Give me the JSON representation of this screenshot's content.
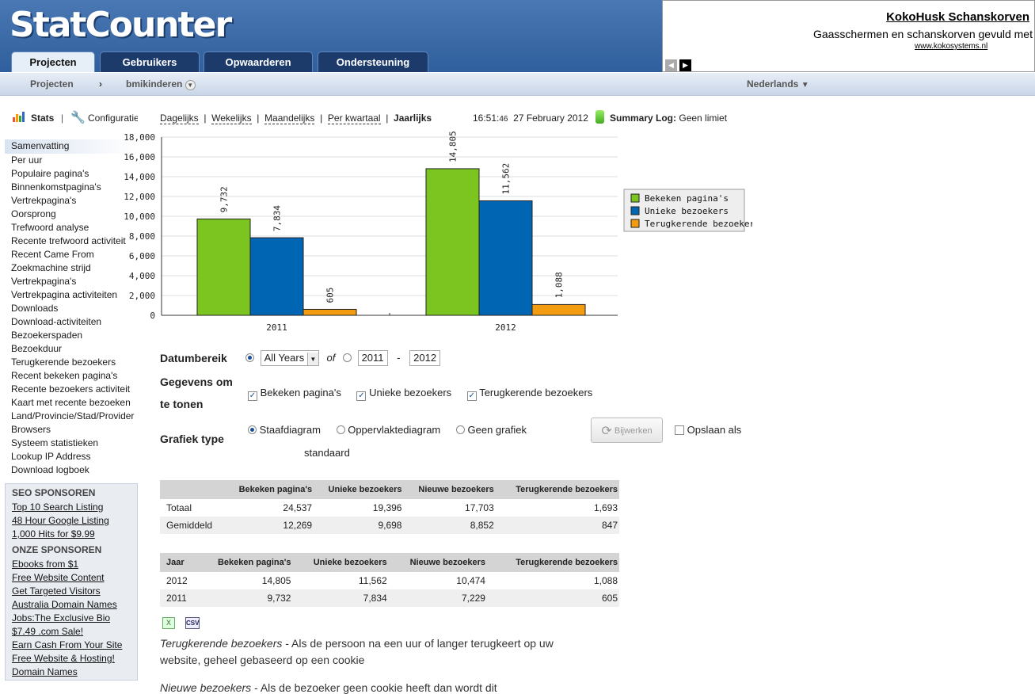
{
  "header": {
    "logo": "StatCounter",
    "tabs": [
      "Projecten",
      "Gebruikers",
      "Opwaarderen",
      "Ondersteuning"
    ]
  },
  "ad": {
    "title": "KokoHusk Schanskorven",
    "text": "Gaasschermen en schanskorven gevuld met",
    "url": "www.kokosystems.nl"
  },
  "subbar": {
    "projects": "Projecten",
    "sep": "›",
    "project": "bmikinderen",
    "language": "Nederlands"
  },
  "toolbar": {
    "stats": "Stats",
    "config": "Configuratie",
    "periods": [
      "Dagelijks",
      "Wekelijks",
      "Maandelijks",
      "Per kwartaal",
      "Jaarlijks"
    ],
    "time": "16:51:",
    "seconds": "46",
    "date": "27 February 2012",
    "summary_label": "Summary Log:",
    "summary_value": "Geen limiet"
  },
  "sidebar": {
    "items": [
      "Samenvatting",
      "Per uur",
      "Populaire pagina's",
      "Binnenkomstpagina's",
      "Vertrekpagina's",
      "Oorsprong",
      "Trefwoord analyse",
      "Recente trefwoord activiteit",
      "Recent Came From",
      "Zoekmachine strijd",
      "Vertrekpagina's",
      "Vertrekpagina activiteiten",
      "Downloads",
      "Download-activiteiten",
      "Bezoekerspaden",
      "Bezoekduur",
      "Terugkerende bezoekers",
      "Recent bekeken pagina's",
      "Recente bezoekers activiteit",
      "Kaart met recente bezoeken",
      "Land/Provincie/Stad/Provider",
      "Browsers",
      "Systeem statistieken",
      "Lookup IP Address",
      "Download logboek"
    ]
  },
  "sponsors": {
    "seo_title": "SEO SPONSOREN",
    "seo": [
      "Top 10 Search Listing",
      "48 Hour Google Listing",
      "1,000 Hits for $9.99"
    ],
    "our_title": "ONZE SPONSOREN",
    "our": [
      "Ebooks from $1",
      "Free Website Content",
      "Get Targeted Visitors",
      "Australia Domain Names",
      "Jobs:The Exclusive Bio",
      "$7.49 .com Sale!",
      "Earn Cash From Your Site",
      "Free Website & Hosting!",
      "Domain Names"
    ]
  },
  "chart_data": {
    "type": "bar",
    "categories": [
      "2011",
      "2012"
    ],
    "series": [
      {
        "name": "Bekeken pagina's",
        "values": [
          9732,
          14805
        ],
        "color": "#7cc520"
      },
      {
        "name": "Unieke bezoekers",
        "values": [
          7834,
          11562
        ],
        "color": "#0066b3"
      },
      {
        "name": "Terugkerende bezoekers",
        "values": [
          605,
          1088
        ],
        "color": "#f39c12"
      }
    ],
    "ylim": [
      0,
      18000
    ],
    "yticks": [
      "0",
      "2,000",
      "4,000",
      "6,000",
      "8,000",
      "10,000",
      "12,000",
      "14,000",
      "16,000",
      "18,000"
    ],
    "labels": [
      [
        "9,732",
        "7,834",
        "605"
      ],
      [
        "14,805",
        "11,562",
        "1,088"
      ]
    ],
    "legend": "right"
  },
  "form": {
    "date_label": "Datumbereik",
    "all_years": "All Years",
    "of": "of",
    "from": "2011",
    "dash": "-",
    "to": "2012",
    "show_label1": "Gegevens om",
    "show_label2": "te tonen",
    "checks": [
      "Bekeken pagina's",
      "Unieke bezoekers",
      "Terugkerende bezoekers"
    ],
    "type_label": "Grafiek type",
    "types": [
      "Staafdiagram",
      "Oppervlaktediagram",
      "Geen grafiek"
    ],
    "standard": "standaard",
    "update": "Bijwerken",
    "save": "Opslaan als"
  },
  "table1": {
    "headers": [
      "",
      "Bekeken pagina's",
      "Unieke bezoekers",
      "Nieuwe bezoekers",
      "Terugkerende bezoekers"
    ],
    "rows": [
      [
        "Totaal",
        "24,537",
        "19,396",
        "17,703",
        "1,693"
      ],
      [
        "Gemiddeld",
        "12,269",
        "9,698",
        "8,852",
        "847"
      ]
    ]
  },
  "table2": {
    "headers": [
      "Jaar",
      "Bekeken pagina's",
      "Unieke bezoekers",
      "Nieuwe bezoekers",
      "Terugkerende bezoekers"
    ],
    "rows": [
      [
        "2012",
        "14,805",
        "11,562",
        "10,474",
        "1,088"
      ],
      [
        "2011",
        "9,732",
        "7,834",
        "7,229",
        "605"
      ]
    ]
  },
  "export": {
    "csv": "CSV"
  },
  "desc": {
    "term": "Terugkerende bezoekers",
    "text": " - Als de persoon na een uur of langer terugkeert op uw website, geheel gebaseerd op een cookie",
    "term2": "Nieuwe bezoekers",
    "text2": " - Als de bezoeker geen cookie heeft dan wordt dit"
  }
}
